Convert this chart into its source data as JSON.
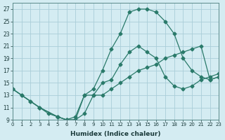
{
  "xlabel": "Humidex (Indice chaleur)",
  "bg_color": "#d4ecf2",
  "grid_color": "#aacdd8",
  "line_color": "#2a7a6a",
  "xlim": [
    0,
    23
  ],
  "ylim": [
    9,
    28
  ],
  "xticks": [
    0,
    1,
    2,
    3,
    4,
    5,
    6,
    7,
    8,
    9,
    10,
    11,
    12,
    13,
    14,
    15,
    16,
    17,
    18,
    19,
    20,
    21,
    22,
    23
  ],
  "yticks": [
    9,
    11,
    13,
    15,
    17,
    19,
    21,
    23,
    25,
    27
  ],
  "line_top_x": [
    0,
    1,
    2,
    3,
    4,
    5,
    6,
    7,
    8,
    9,
    10,
    11,
    12,
    13,
    14,
    15,
    16,
    17,
    18,
    19,
    20,
    21,
    22,
    23
  ],
  "line_top_y": [
    14,
    13,
    12,
    11,
    10,
    9.5,
    9,
    9.5,
    13,
    14,
    17,
    20.5,
    23,
    26.5,
    27,
    27,
    26.5,
    25,
    23,
    19,
    17,
    16,
    15.5,
    16
  ],
  "line_mid_x": [
    0,
    3,
    5,
    6,
    7,
    8,
    9,
    10,
    11,
    12,
    13,
    14,
    15,
    16,
    17,
    18,
    19,
    20,
    21,
    22,
    23
  ],
  "line_mid_y": [
    14,
    11,
    9.5,
    9,
    9,
    13,
    13,
    15,
    15.5,
    18,
    20,
    21,
    20,
    19,
    16,
    14.5,
    14,
    14.5,
    15.5,
    16,
    16.5
  ],
  "line_bot_x": [
    0,
    1,
    2,
    3,
    5,
    6,
    7,
    8,
    9,
    10,
    11,
    12,
    13,
    14,
    15,
    16,
    17,
    18,
    19,
    20,
    21,
    22,
    23
  ],
  "line_bot_y": [
    14,
    13,
    12,
    11,
    9.5,
    9,
    9,
    10,
    13,
    13,
    14,
    15,
    16,
    17,
    17.5,
    18,
    19,
    19.5,
    20,
    20.5,
    21,
    15.5,
    16
  ]
}
